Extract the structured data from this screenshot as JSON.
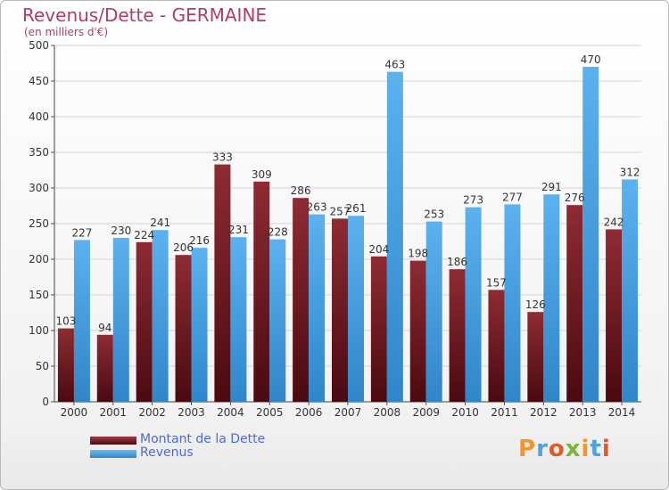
{
  "title": "Revenus/Dette - GERMAINE",
  "subtitle": "(en milliers d'€)",
  "logo": {
    "text": "Proxiti",
    "colors": [
      "#f0962d",
      "#4fa3dc",
      "#e15a28",
      "#7ab536",
      "#f0962d",
      "#4fa3dc",
      "#e15a28"
    ]
  },
  "colors": {
    "dette": "#7a1f28",
    "revenus": "#4aa3e3",
    "title": "#b43c64",
    "legend_text": "#4e6bdc"
  },
  "chart_data": {
    "type": "bar",
    "title": "Revenus/Dette - GERMAINE",
    "subtitle": "(en milliers d'€)",
    "xlabel": "",
    "ylabel": "",
    "ylim": [
      0,
      500
    ],
    "yticks": [
      0,
      50,
      100,
      150,
      200,
      250,
      300,
      350,
      400,
      450,
      500
    ],
    "grid": true,
    "legend_position": "bottom-left",
    "categories": [
      "2000",
      "2001",
      "2002",
      "2003",
      "2004",
      "2005",
      "2006",
      "2007",
      "2008",
      "2009",
      "2010",
      "2011",
      "2012",
      "2013",
      "2014"
    ],
    "series": [
      {
        "name": "Montant de la Dette",
        "color": "#7a1f28",
        "values": [
          103,
          94,
          224,
          206,
          333,
          309,
          286,
          257,
          204,
          198,
          186,
          157,
          126,
          276,
          242
        ]
      },
      {
        "name": "Revenus",
        "color": "#4aa3e3",
        "values": [
          227,
          230,
          241,
          216,
          231,
          228,
          263,
          261,
          463,
          253,
          273,
          277,
          291,
          470,
          312
        ]
      }
    ]
  }
}
